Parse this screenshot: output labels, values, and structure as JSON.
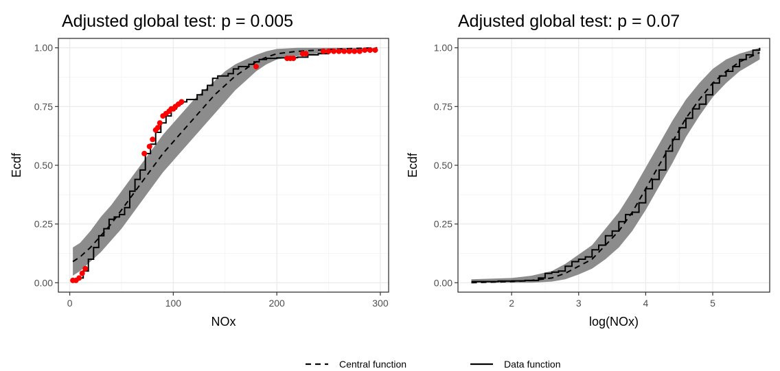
{
  "legend": {
    "position": "bottom",
    "entries": [
      {
        "label": "Central function",
        "linetype": "dashed"
      },
      {
        "label": "Data function",
        "linetype": "solid"
      }
    ]
  },
  "colors": {
    "envelope": "#8c8c8c",
    "grid_major": "#ebebeb",
    "grid_minor": "#f5f5f5",
    "panel_border": "#333333",
    "line": "#000000",
    "points": "#ff0000"
  },
  "chart_data": [
    {
      "type": "line",
      "title": "Adjusted global test: p = 0.005",
      "xlabel": "NOx",
      "ylabel": "Ecdf",
      "xlim": [
        -11,
        308
      ],
      "ylim": [
        -0.04,
        1.04
      ],
      "grid": true,
      "x_ticks": [
        0,
        100,
        200,
        300
      ],
      "x_tick_labels": [
        "0",
        "100",
        "200",
        "300"
      ],
      "y_ticks": [
        0,
        0.25,
        0.5,
        0.75,
        1
      ],
      "y_tick_labels": [
        "0.00",
        "0.25",
        "0.50",
        "0.75",
        "1.00"
      ],
      "series": [
        {
          "name": "Central function",
          "x": [
            3,
            10,
            20,
            30,
            40,
            50,
            60,
            70,
            80,
            90,
            100,
            110,
            120,
            130,
            140,
            150,
            160,
            170,
            180,
            190,
            200,
            220,
            240,
            260,
            280,
            297
          ],
          "y": [
            0.09,
            0.11,
            0.15,
            0.2,
            0.25,
            0.31,
            0.37,
            0.43,
            0.49,
            0.55,
            0.6,
            0.65,
            0.7,
            0.75,
            0.8,
            0.84,
            0.88,
            0.91,
            0.94,
            0.96,
            0.975,
            0.985,
            0.99,
            0.995,
            0.998,
            1.0
          ]
        },
        {
          "name": "Data function",
          "x": [
            3,
            8,
            13,
            18,
            23,
            28,
            33,
            38,
            43,
            48,
            53,
            58,
            63,
            68,
            73,
            78,
            83,
            88,
            93,
            98,
            103,
            108,
            113,
            118,
            123,
            128,
            133,
            138,
            143,
            148,
            153,
            158,
            163,
            168,
            173,
            178,
            183,
            190,
            200,
            210,
            220,
            230,
            240,
            250,
            260,
            270,
            280,
            290,
            297
          ],
          "y": [
            0.01,
            0.02,
            0.05,
            0.1,
            0.15,
            0.2,
            0.23,
            0.27,
            0.28,
            0.29,
            0.32,
            0.39,
            0.44,
            0.48,
            0.55,
            0.59,
            0.64,
            0.68,
            0.71,
            0.74,
            0.76,
            0.77,
            0.78,
            0.78,
            0.8,
            0.82,
            0.84,
            0.87,
            0.88,
            0.88,
            0.89,
            0.91,
            0.92,
            0.92,
            0.93,
            0.94,
            0.95,
            0.955,
            0.957,
            0.958,
            0.96,
            0.97,
            0.975,
            0.985,
            0.985,
            0.986,
            0.988,
            0.99,
            0.993
          ]
        },
        {
          "name": "Envelope upper",
          "x": [
            3,
            10,
            20,
            30,
            40,
            50,
            60,
            70,
            80,
            90,
            100,
            110,
            120,
            130,
            140,
            150,
            160,
            170,
            180,
            190,
            200,
            220,
            240,
            260,
            280,
            297
          ],
          "y": [
            0.15,
            0.17,
            0.22,
            0.28,
            0.33,
            0.39,
            0.45,
            0.51,
            0.57,
            0.63,
            0.68,
            0.73,
            0.78,
            0.82,
            0.86,
            0.9,
            0.93,
            0.95,
            0.97,
            0.985,
            0.995,
            1.0,
            1.0,
            1.0,
            1.0,
            1.0
          ]
        },
        {
          "name": "Envelope lower",
          "x": [
            3,
            10,
            20,
            30,
            40,
            50,
            60,
            70,
            80,
            90,
            100,
            110,
            120,
            130,
            140,
            150,
            160,
            170,
            180,
            190,
            200,
            220,
            240,
            260,
            280,
            297
          ],
          "y": [
            0.03,
            0.05,
            0.09,
            0.13,
            0.18,
            0.23,
            0.29,
            0.35,
            0.41,
            0.47,
            0.52,
            0.57,
            0.62,
            0.67,
            0.72,
            0.77,
            0.82,
            0.86,
            0.9,
            0.93,
            0.95,
            0.965,
            0.975,
            0.985,
            0.99,
            0.995
          ]
        },
        {
          "name": "Outside points",
          "x": [
            3,
            6,
            9,
            12,
            15,
            72,
            77,
            80,
            83,
            85,
            87,
            90,
            93,
            96,
            98,
            100,
            102,
            105,
            108,
            180,
            210,
            213,
            216,
            225,
            228,
            245,
            250,
            255,
            260,
            265,
            270,
            275,
            280,
            285,
            290,
            295
          ],
          "y": [
            0.01,
            0.01,
            0.02,
            0.04,
            0.06,
            0.55,
            0.58,
            0.61,
            0.65,
            0.66,
            0.68,
            0.71,
            0.72,
            0.73,
            0.74,
            0.74,
            0.75,
            0.76,
            0.77,
            0.92,
            0.955,
            0.955,
            0.955,
            0.975,
            0.975,
            0.985,
            0.985,
            0.985,
            0.985,
            0.985,
            0.985,
            0.985,
            0.985,
            0.99,
            0.99,
            0.99
          ]
        }
      ]
    },
    {
      "type": "line",
      "title": "Adjusted global test: p = 0.07",
      "xlabel": "log(NOx)",
      "ylabel": "Ecdf",
      "xlim": [
        1.2,
        5.85
      ],
      "ylim": [
        -0.04,
        1.04
      ],
      "grid": true,
      "x_ticks": [
        2,
        3,
        4,
        5
      ],
      "x_tick_labels": [
        "2",
        "3",
        "4",
        "5"
      ],
      "y_ticks": [
        0,
        0.25,
        0.5,
        0.75,
        1
      ],
      "y_tick_labels": [
        "0.00",
        "0.25",
        "0.50",
        "0.75",
        "1.00"
      ],
      "series": [
        {
          "name": "Central function",
          "x": [
            1.4,
            2.0,
            2.3,
            2.6,
            2.8,
            3.0,
            3.2,
            3.4,
            3.6,
            3.8,
            4.0,
            4.2,
            4.4,
            4.6,
            4.8,
            5.0,
            5.2,
            5.4,
            5.7
          ],
          "y": [
            0.0,
            0.005,
            0.01,
            0.02,
            0.04,
            0.07,
            0.1,
            0.16,
            0.22,
            0.3,
            0.4,
            0.5,
            0.6,
            0.7,
            0.78,
            0.85,
            0.9,
            0.94,
            0.98
          ]
        },
        {
          "name": "Data function",
          "x": [
            1.4,
            1.6,
            1.8,
            2.0,
            2.2,
            2.4,
            2.5,
            2.6,
            2.7,
            2.8,
            2.9,
            3.0,
            3.1,
            3.2,
            3.3,
            3.4,
            3.5,
            3.6,
            3.7,
            3.8,
            3.9,
            4.0,
            4.1,
            4.2,
            4.3,
            4.4,
            4.5,
            4.6,
            4.7,
            4.8,
            4.9,
            5.0,
            5.1,
            5.2,
            5.3,
            5.4,
            5.5,
            5.6,
            5.7
          ],
          "y": [
            0.005,
            0.005,
            0.007,
            0.008,
            0.01,
            0.02,
            0.04,
            0.045,
            0.05,
            0.07,
            0.09,
            0.1,
            0.11,
            0.14,
            0.16,
            0.2,
            0.22,
            0.26,
            0.29,
            0.3,
            0.34,
            0.4,
            0.44,
            0.48,
            0.56,
            0.61,
            0.66,
            0.7,
            0.74,
            0.76,
            0.8,
            0.85,
            0.88,
            0.9,
            0.92,
            0.95,
            0.97,
            0.99,
            1.0
          ]
        },
        {
          "name": "Envelope upper",
          "x": [
            1.4,
            2.0,
            2.3,
            2.6,
            2.8,
            3.0,
            3.2,
            3.4,
            3.6,
            3.8,
            4.0,
            4.2,
            4.4,
            4.6,
            4.8,
            5.0,
            5.2,
            5.4,
            5.7
          ],
          "y": [
            0.015,
            0.02,
            0.03,
            0.05,
            0.08,
            0.12,
            0.16,
            0.23,
            0.3,
            0.39,
            0.49,
            0.59,
            0.69,
            0.78,
            0.85,
            0.91,
            0.95,
            0.975,
            1.0
          ]
        },
        {
          "name": "Envelope lower",
          "x": [
            1.4,
            2.0,
            2.3,
            2.6,
            2.8,
            3.0,
            3.2,
            3.4,
            3.6,
            3.8,
            4.0,
            4.2,
            4.4,
            4.6,
            4.8,
            5.0,
            5.2,
            5.4,
            5.7
          ],
          "y": [
            0.0,
            0.0,
            0.0,
            0.005,
            0.015,
            0.035,
            0.06,
            0.1,
            0.15,
            0.22,
            0.31,
            0.41,
            0.51,
            0.62,
            0.71,
            0.79,
            0.85,
            0.9,
            0.95
          ]
        }
      ]
    }
  ]
}
